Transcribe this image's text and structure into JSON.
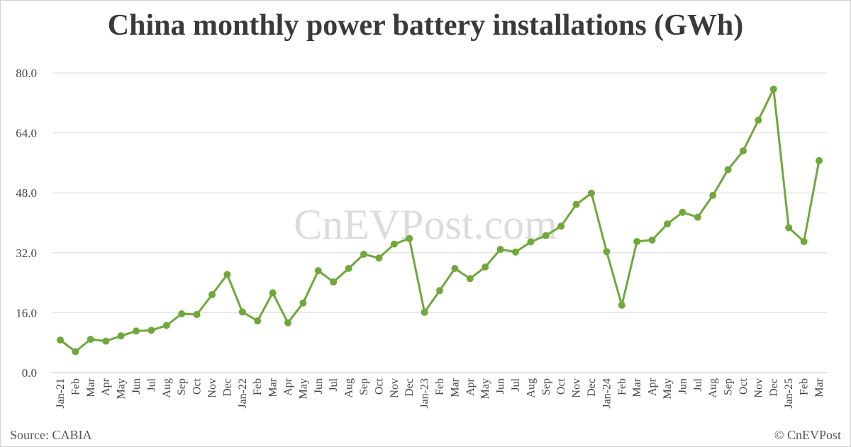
{
  "title": "China monthly power battery installations (GWh)",
  "watermark": "CnEVPost.com",
  "source": "Source: CABIA",
  "copyright": "© CnEVPost",
  "chart_data": {
    "type": "line",
    "title": "China monthly power battery installations (GWh)",
    "xlabel": "",
    "ylabel": "",
    "ylim": [
      0,
      80
    ],
    "yticks": [
      "0.0",
      "16.0",
      "32.0",
      "48.0",
      "64.0",
      "80.0"
    ],
    "grid": true,
    "line_color": "#70a83b",
    "categories": [
      "Jan-21",
      "Feb",
      "Mar",
      "Apr",
      "May",
      "Jun",
      "Jul",
      "Aug",
      "Sep",
      "Oct",
      "Nov",
      "Dec",
      "Jan-22",
      "Feb",
      "Mar",
      "Apr",
      "May",
      "Jun",
      "Jul",
      "Aug",
      "Sep",
      "Oct",
      "Nov",
      "Dec",
      "Jan-23",
      "Feb",
      "Mar",
      "Apr",
      "May",
      "Jun",
      "Jul",
      "Aug",
      "Sep",
      "Oct",
      "Nov",
      "Dec",
      "Jan-24",
      "Feb",
      "Mar",
      "Apr",
      "May",
      "Jun",
      "Jul",
      "Aug",
      "Sep",
      "Oct",
      "Nov",
      "Dec",
      "Jan-25",
      "Feb",
      "Mar"
    ],
    "series": [
      {
        "values": [
          8.7,
          5.6,
          8.9,
          8.4,
          9.8,
          11.1,
          11.3,
          12.6,
          15.7,
          15.5,
          20.8,
          26.2,
          16.2,
          13.8,
          21.3,
          13.3,
          18.6,
          27.2,
          24.2,
          27.8,
          31.6,
          30.6,
          34.3,
          35.8,
          16.1,
          21.9,
          27.8,
          25.1,
          28.2,
          32.9,
          32.2,
          34.9,
          36.6,
          39.1,
          44.9,
          47.9,
          32.3,
          18.0,
          35.0,
          35.4,
          39.7,
          42.8,
          41.5,
          47.3,
          54.2,
          59.2,
          67.4,
          75.7,
          38.7,
          35.0,
          56.6
        ]
      }
    ]
  }
}
